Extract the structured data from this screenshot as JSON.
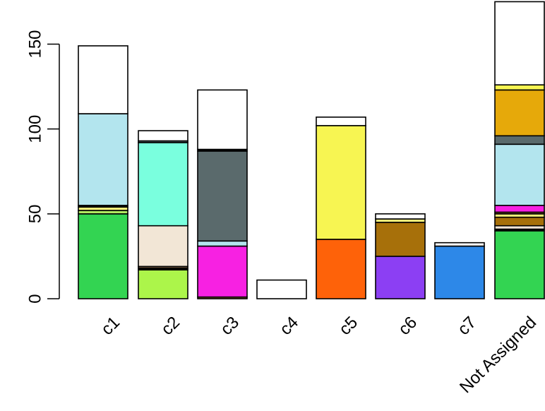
{
  "chart_data": {
    "type": "bar",
    "stacked": true,
    "title": "",
    "xlabel": "",
    "ylabel": "",
    "ylim": [
      0,
      175
    ],
    "yticks": [
      0,
      50,
      100,
      150
    ],
    "grid": false,
    "legend": "none",
    "x_label_rotation": -45,
    "categories": [
      "c1",
      "c2",
      "c3",
      "c4",
      "c5",
      "c6",
      "c7",
      "Not Assigned"
    ],
    "stacks": [
      {
        "category": "c1",
        "segments": [
          {
            "value": 50,
            "color": "#33d452"
          },
          {
            "value": 2,
            "color": "#b0e860"
          },
          {
            "value": 2,
            "color": "#f4ef7a"
          },
          {
            "value": 1,
            "color": "#000000"
          },
          {
            "value": 54,
            "color": "#b3e5ee"
          },
          {
            "value": 40,
            "color": "#ffffff"
          }
        ]
      },
      {
        "category": "c2",
        "segments": [
          {
            "value": 17,
            "color": "#acf54a"
          },
          {
            "value": 1,
            "color": "#000000"
          },
          {
            "value": 1,
            "color": "#8b6b4a"
          },
          {
            "value": 24,
            "color": "#f2e6d6"
          },
          {
            "value": 49,
            "color": "#7affde"
          },
          {
            "value": 1,
            "color": "#5a6a6c"
          },
          {
            "value": 6,
            "color": "#ffffff"
          }
        ]
      },
      {
        "category": "c3",
        "segments": [
          {
            "value": 1,
            "color": "#8b5a2b"
          },
          {
            "value": 30,
            "color": "#f721e2"
          },
          {
            "value": 3,
            "color": "#b3e5ee"
          },
          {
            "value": 53,
            "color": "#5a6a6c"
          },
          {
            "value": 1,
            "color": "#000000"
          },
          {
            "value": 35,
            "color": "#ffffff"
          }
        ]
      },
      {
        "category": "c4",
        "segments": [
          {
            "value": 11,
            "color": "#ffffff"
          }
        ]
      },
      {
        "category": "c5",
        "segments": [
          {
            "value": 35,
            "color": "#fe6209"
          },
          {
            "value": 67,
            "color": "#f7f552"
          },
          {
            "value": 5,
            "color": "#ffffff"
          }
        ]
      },
      {
        "category": "c6",
        "segments": [
          {
            "value": 25,
            "color": "#8c3ff3"
          },
          {
            "value": 20,
            "color": "#a7700a"
          },
          {
            "value": 2,
            "color": "#f4ef7a"
          },
          {
            "value": 3,
            "color": "#ffffff"
          }
        ]
      },
      {
        "category": "c7",
        "segments": [
          {
            "value": 31,
            "color": "#2d88e8"
          },
          {
            "value": 2,
            "color": "#ffffff"
          }
        ]
      },
      {
        "category": "Not Assigned",
        "segments": [
          {
            "value": 40,
            "color": "#33d452"
          },
          {
            "value": 1,
            "color": "#000000"
          },
          {
            "value": 2,
            "color": "#f2e6d6"
          },
          {
            "value": 5,
            "color": "#a7700a"
          },
          {
            "value": 2,
            "color": "#f4ef7a"
          },
          {
            "value": 1,
            "color": "#8b5a2b"
          },
          {
            "value": 4,
            "color": "#f721e2"
          },
          {
            "value": 36,
            "color": "#b3e5ee"
          },
          {
            "value": 5,
            "color": "#5a6a6c"
          },
          {
            "value": 27,
            "color": "#e6a90a"
          },
          {
            "value": 3,
            "color": "#f7f552"
          },
          {
            "value": 49,
            "color": "#ffffff"
          }
        ]
      }
    ]
  }
}
